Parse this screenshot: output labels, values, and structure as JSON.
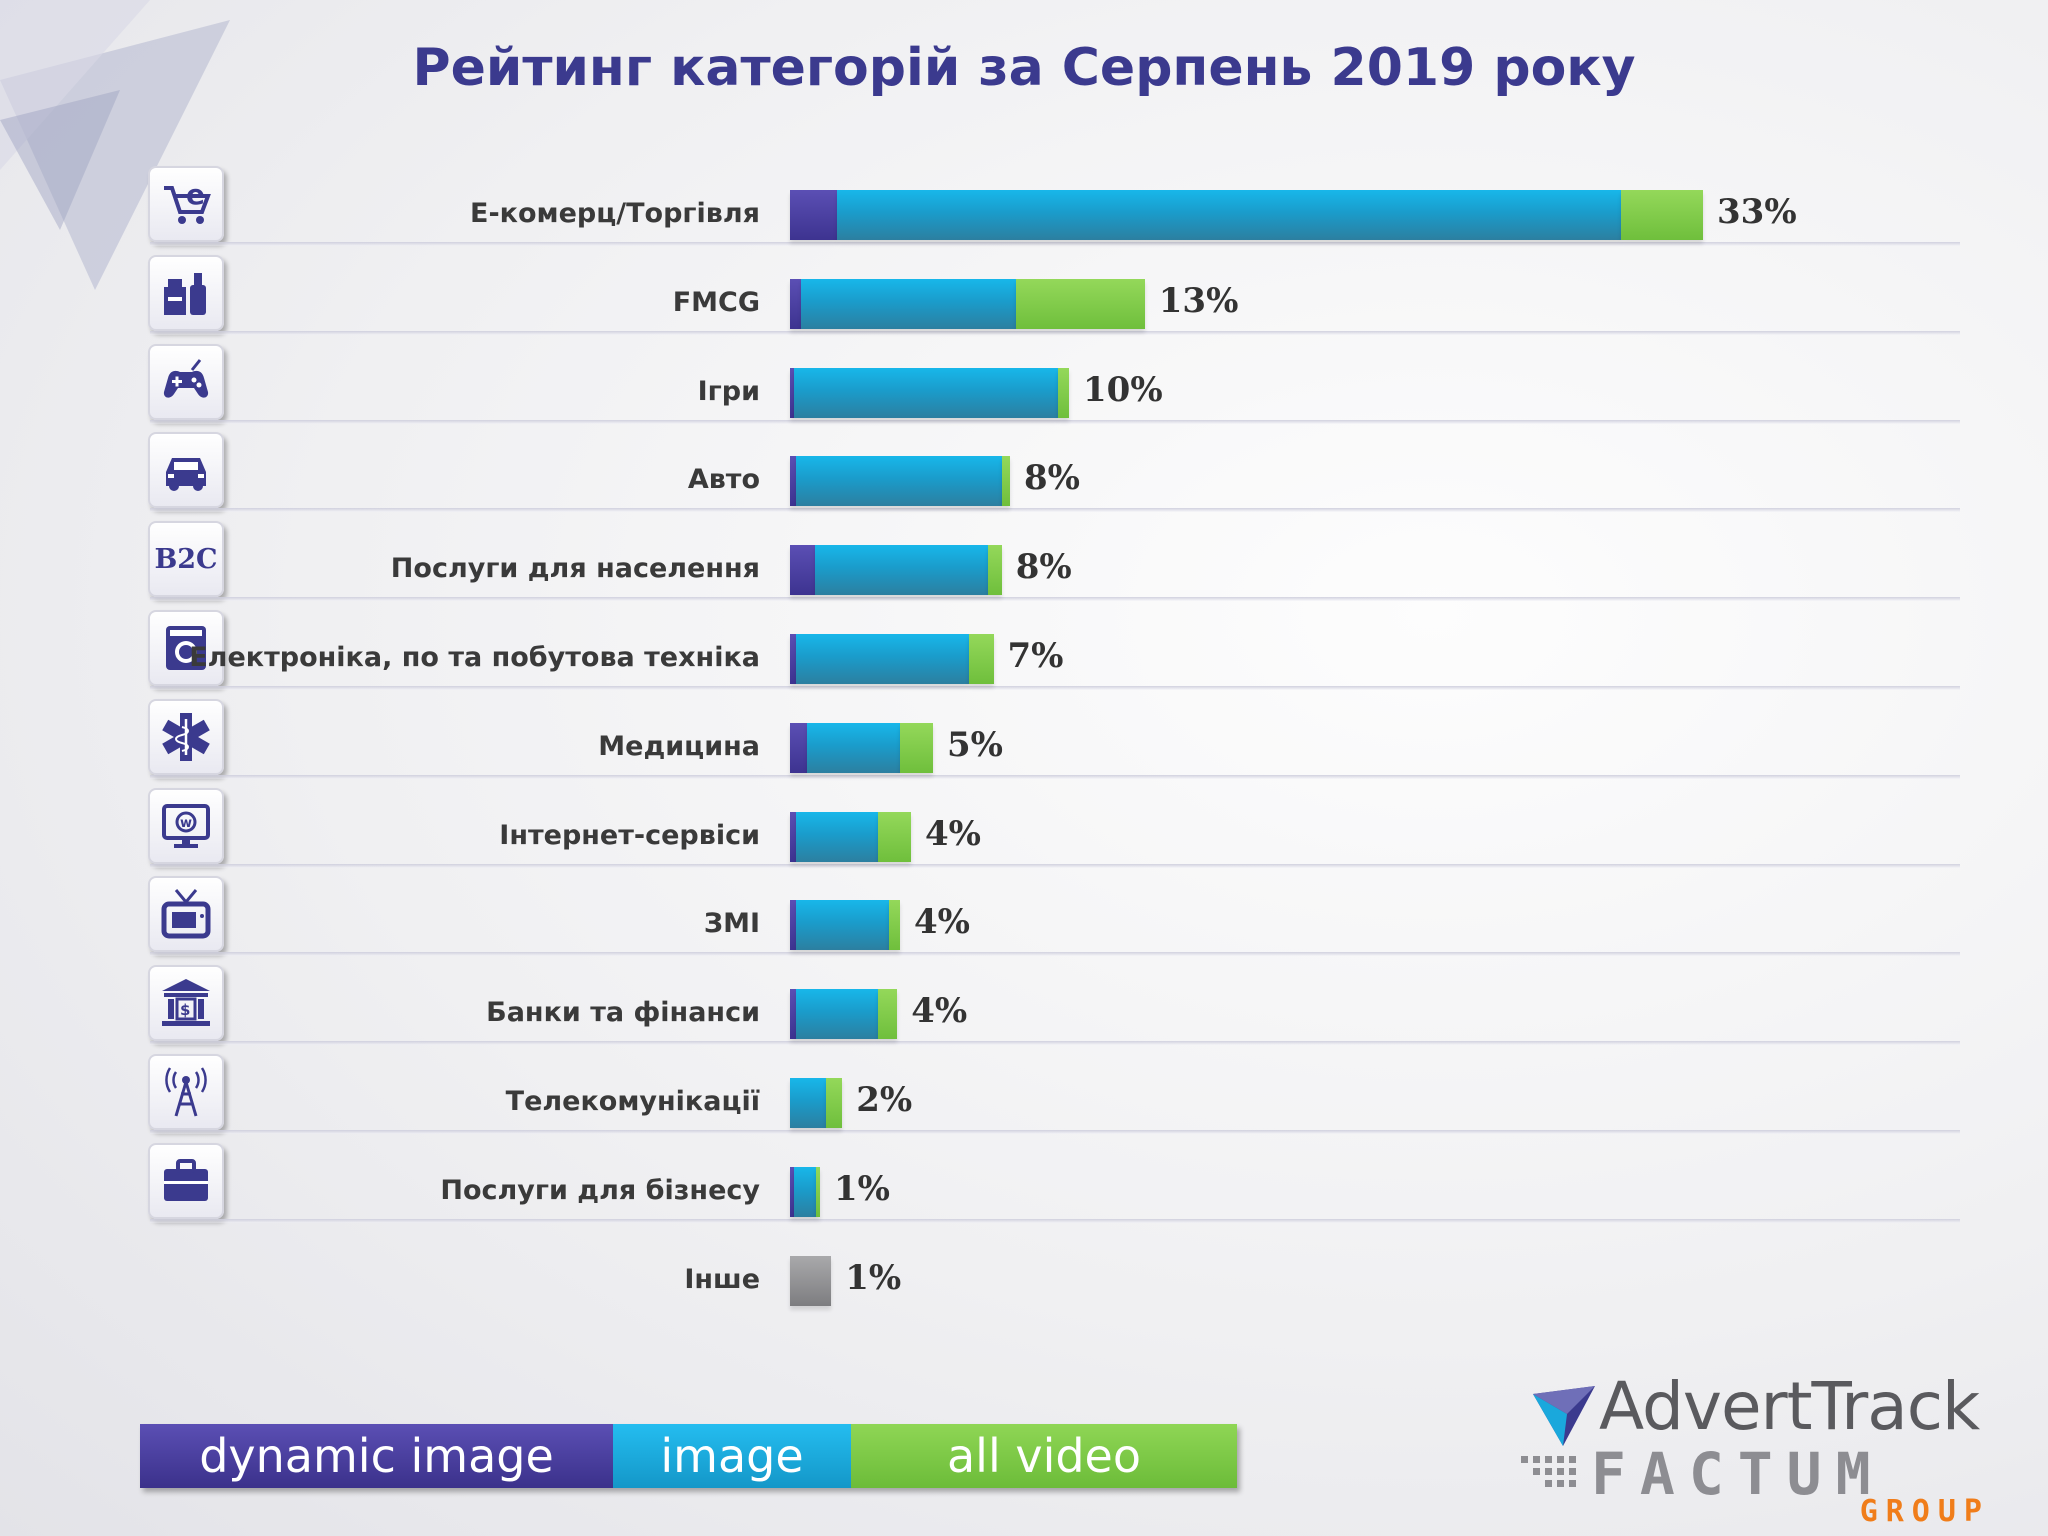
{
  "title": "Рейтинг категорій за Серпень 2019 року",
  "colors": {
    "dynamic_image": "#4a3fa3",
    "image": "#1aa8dc",
    "all_video": "#7cc847",
    "other": "#8f8f92",
    "title": "#3b3a8e"
  },
  "chart_data": {
    "type": "bar",
    "orientation": "horizontal",
    "stacked": true,
    "title": "Рейтинг категорій за Серпень 2019 року",
    "categories": [
      "Е-комерц/Торгівля",
      "FMCG",
      "Ігри",
      "Авто",
      "Послуги для населення",
      "Електроніка, по та побутова техніка",
      "Медицина",
      "Інтернет-сервіси",
      "ЗМІ",
      "Банки та фінанси",
      "Телекомунікації",
      "Послуги для бізнесу",
      "Інше"
    ],
    "series": [
      {
        "name": "dynamic image",
        "values": [
          1.7,
          0.4,
          0.1,
          0.2,
          0.9,
          0.2,
          0.6,
          0.2,
          0.2,
          0.2,
          0.0,
          0.1,
          0
        ]
      },
      {
        "name": "image",
        "values": [
          28.5,
          7.8,
          9.6,
          7.5,
          6.3,
          6.3,
          3.4,
          3.0,
          3.4,
          3.0,
          1.3,
          0.8,
          0
        ]
      },
      {
        "name": "all video",
        "values": [
          3.0,
          4.7,
          0.4,
          0.3,
          0.5,
          0.9,
          1.2,
          1.2,
          0.4,
          0.7,
          0.6,
          0.1,
          0
        ]
      },
      {
        "name": "Інше",
        "values": [
          0,
          0,
          0,
          0,
          0,
          0,
          0,
          0,
          0,
          0,
          0,
          0,
          1.5
        ]
      }
    ],
    "totals_labels": [
      "33%",
      "13%",
      "10%",
      "8%",
      "8%",
      "7%",
      "5%",
      "4%",
      "4%",
      "4%",
      "2%",
      "1%",
      "1%"
    ],
    "icons": [
      "cart-icon",
      "fmcg-products-icon",
      "gamepad-icon",
      "car-icon",
      "b2c-icon",
      "washing-machine-icon",
      "medical-icon",
      "internet-monitor-icon",
      "tv-icon",
      "bank-icon",
      "antenna-icon",
      "briefcase-icon"
    ],
    "legend_position": "bottom-left",
    "grid": false
  },
  "legend": {
    "dynamic": "dynamic image",
    "image": "image",
    "video": "all video"
  },
  "logo": {
    "line1": "AdvertTrack",
    "line2": "FACTUM",
    "line3": "GROUP"
  }
}
